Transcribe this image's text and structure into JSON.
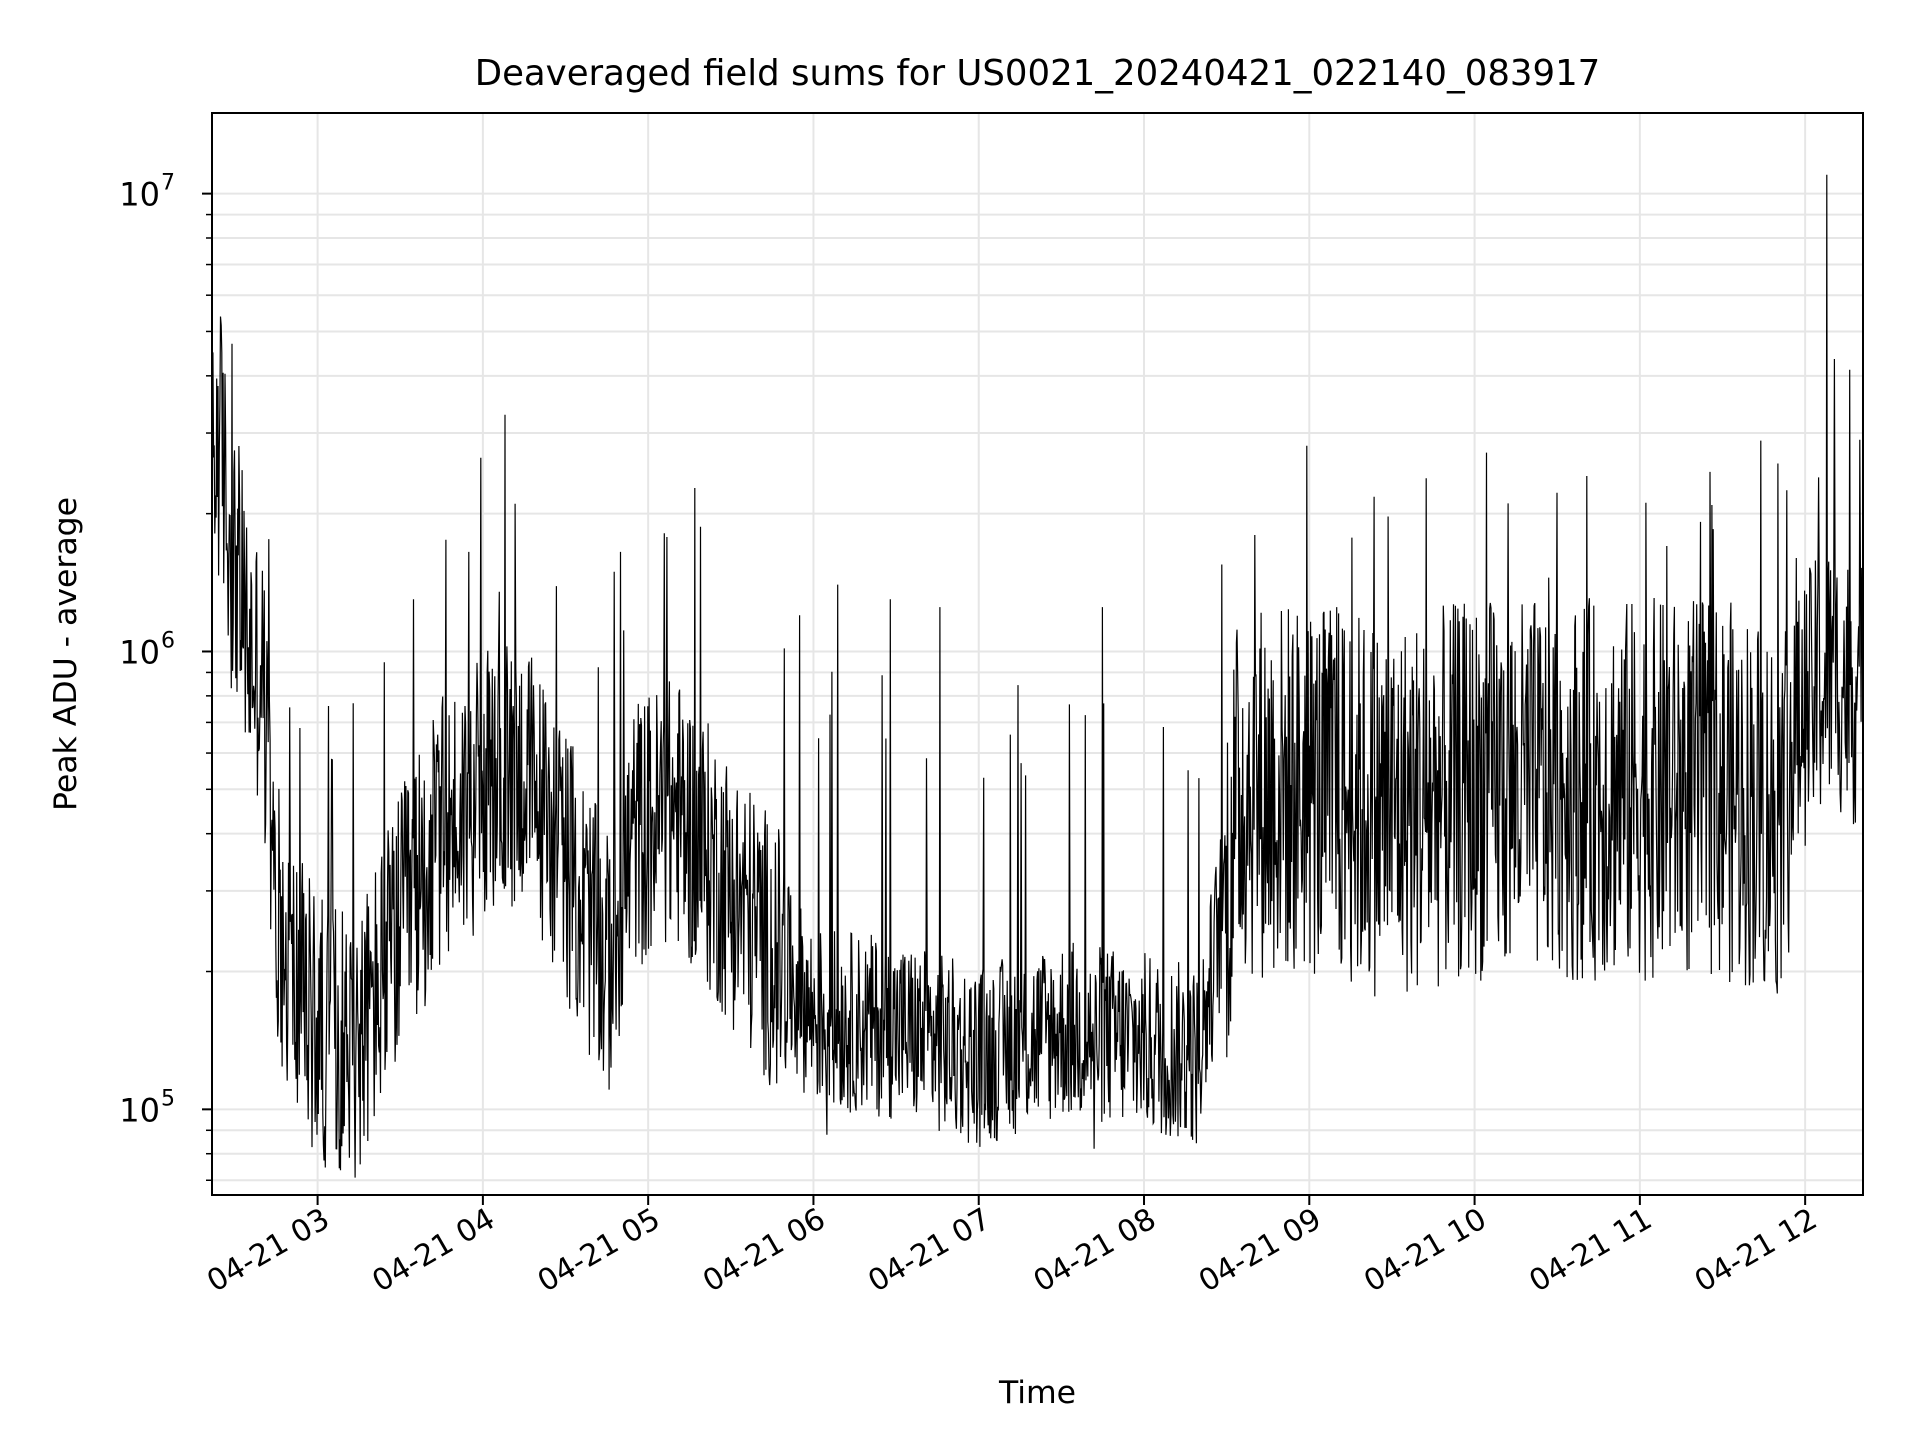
{
  "chart_data": {
    "type": "line",
    "title": "Deaveraged field sums for US0021_20240421_022140_083917",
    "xlabel": "Time",
    "ylabel": "Peak ADU - average",
    "yscale": "log",
    "ylim": [
      65000,
      15000000
    ],
    "xlim": [
      "2024-04-21T02:21:40",
      "2024-04-21T12:21:00"
    ],
    "grid": true,
    "line_color": "#000000",
    "x_ticks": [
      {
        "t": "2024-04-21T03:00",
        "label": "04-21 03"
      },
      {
        "t": "2024-04-21T04:00",
        "label": "04-21 04"
      },
      {
        "t": "2024-04-21T05:00",
        "label": "04-21 05"
      },
      {
        "t": "2024-04-21T06:00",
        "label": "04-21 06"
      },
      {
        "t": "2024-04-21T07:00",
        "label": "04-21 07"
      },
      {
        "t": "2024-04-21T08:00",
        "label": "04-21 08"
      },
      {
        "t": "2024-04-21T09:00",
        "label": "04-21 09"
      },
      {
        "t": "2024-04-21T10:00",
        "label": "04-21 10"
      },
      {
        "t": "2024-04-21T11:00",
        "label": "04-21 11"
      },
      {
        "t": "2024-04-21T12:00",
        "label": "04-21 12"
      }
    ],
    "y_ticks": [
      {
        "value": 100000,
        "base": "10",
        "exp": "5"
      },
      {
        "value": 1000000,
        "base": "10",
        "exp": "6"
      },
      {
        "value": 10000000,
        "base": "10",
        "exp": "7"
      }
    ],
    "series": [
      {
        "points": [
          [
            "2024-04-21T02:22",
            2400000
          ],
          [
            "2024-04-21T02:25",
            2900000
          ],
          [
            "2024-04-21T02:28",
            1700000
          ],
          [
            "2024-04-21T02:31",
            1500000
          ],
          [
            "2024-04-21T02:35",
            1000000
          ],
          [
            "2024-04-21T02:40",
            900000
          ],
          [
            "2024-04-21T02:44",
            300000
          ],
          [
            "2024-04-21T02:50",
            200000
          ],
          [
            "2024-04-21T03:00",
            150000
          ],
          [
            "2024-04-21T03:15",
            140000
          ],
          [
            "2024-04-21T03:30",
            250000
          ],
          [
            "2024-04-21T03:45",
            400000
          ],
          [
            "2024-04-21T04:00",
            500000
          ],
          [
            "2024-04-21T04:15",
            550000
          ],
          [
            "2024-04-21T04:30",
            350000
          ],
          [
            "2024-04-21T04:45",
            200000
          ],
          [
            "2024-04-21T04:55",
            400000
          ],
          [
            "2024-04-21T05:10",
            450000
          ],
          [
            "2024-04-21T05:30",
            300000
          ],
          [
            "2024-04-21T05:45",
            220000
          ],
          [
            "2024-04-21T06:00",
            160000
          ],
          [
            "2024-04-21T06:30",
            150000
          ],
          [
            "2024-04-21T07:00",
            130000
          ],
          [
            "2024-04-21T07:30",
            150000
          ],
          [
            "2024-04-21T08:00",
            140000
          ],
          [
            "2024-04-21T08:20",
            130000
          ],
          [
            "2024-04-21T08:35",
            500000
          ],
          [
            "2024-04-21T09:00",
            500000
          ],
          [
            "2024-04-21T09:30",
            450000
          ],
          [
            "2024-04-21T10:00",
            500000
          ],
          [
            "2024-04-21T10:30",
            500000
          ],
          [
            "2024-04-21T11:00",
            500000
          ],
          [
            "2024-04-21T11:30",
            500000
          ],
          [
            "2024-04-21T11:50",
            450000
          ],
          [
            "2024-04-21T12:00",
            750000
          ],
          [
            "2024-04-21T12:10",
            900000
          ],
          [
            "2024-04-21T12:20",
            800000
          ]
        ],
        "spikes": [
          [
            "2024-04-21T02:22",
            4500000
          ],
          [
            "2024-04-21T02:24",
            3800000
          ],
          [
            "2024-04-21T02:29",
            4700000
          ],
          [
            "2024-04-21T03:00",
            88000
          ],
          [
            "2024-04-21T03:07",
            82000
          ],
          [
            "2024-04-21T03:35",
            1300000
          ],
          [
            "2024-04-21T03:55",
            1650000
          ],
          [
            "2024-04-21T04:06",
            1350000
          ],
          [
            "2024-04-21T04:50",
            1650000
          ],
          [
            "2024-04-21T05:55",
            1200000
          ],
          [
            "2024-04-21T06:09",
            1400000
          ],
          [
            "2024-04-21T06:05",
            88000
          ],
          [
            "2024-04-21T06:28",
            1300000
          ],
          [
            "2024-04-21T06:46",
            1250000
          ],
          [
            "2024-04-21T07:45",
            1250000
          ],
          [
            "2024-04-21T07:42",
            82000
          ],
          [
            "2024-04-21T08:08",
            88000
          ],
          [
            "2024-04-21T09:10",
            1250000
          ],
          [
            "2024-04-21T10:27",
            1450000
          ],
          [
            "2024-04-21T11:10",
            1700000
          ],
          [
            "2024-04-21T11:57",
            1600000
          ],
          [
            "2024-04-21T12:08",
            11000000
          ],
          [
            "2024-04-21T12:05",
            2400000
          ],
          [
            "2024-04-21T12:20",
            2900000
          ]
        ]
      }
    ]
  }
}
